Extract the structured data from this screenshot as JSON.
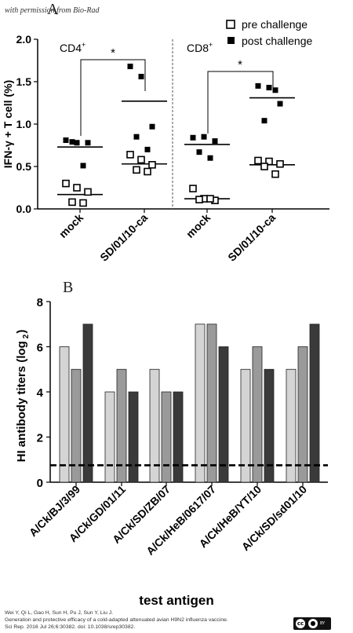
{
  "watermark": "with permission from Bio-Rad",
  "license_badge": {
    "text_by": "BY"
  },
  "citation": [
    "Wei Y, Qi L, Gao H, Sun H, Pu J, Sun Y, Liu J.",
    "Generation and protective efficacy of a cold-adapted attenuated avian H9N2 influenza vaccine.",
    "Sci Rep. 2016 Jul 26;6:30382. doi: 10.1038/srep30382."
  ],
  "chart_data": [
    {
      "panel": "A",
      "type": "scatter",
      "ylabel": "IFN-γ + T cell (%)",
      "ylim": [
        0,
        2.0
      ],
      "yticks": [
        "0.0",
        "0.5",
        "1.0",
        "1.5",
        "2.0"
      ],
      "groups": [
        {
          "name": "CD4",
          "superscript": "+",
          "categories": [
            "mock",
            "SD/01/10-ca"
          ]
        },
        {
          "name": "CD8",
          "superscript": "+",
          "categories": [
            "mock",
            "SD/01/10-ca"
          ]
        }
      ],
      "legend": [
        {
          "label": "pre challenge",
          "marker": "open-square"
        },
        {
          "label": "post challenge",
          "marker": "filled-square"
        }
      ],
      "series": [
        {
          "name": "pre challenge",
          "group": "CD4",
          "category": "mock",
          "values": [
            0.3,
            0.25,
            0.2,
            0.08,
            0.07
          ]
        },
        {
          "name": "post challenge",
          "group": "CD4",
          "category": "mock",
          "values": [
            0.81,
            0.78,
            0.78,
            0.79,
            0.51
          ]
        },
        {
          "name": "pre challenge",
          "group": "CD4",
          "category": "SD/01/10-ca",
          "values": [
            0.64,
            0.58,
            0.52,
            0.46,
            0.44
          ]
        },
        {
          "name": "post challenge",
          "group": "CD4",
          "category": "SD/01/10-ca",
          "values": [
            1.68,
            1.56,
            0.97,
            0.85,
            0.7
          ]
        },
        {
          "name": "pre challenge",
          "group": "CD8",
          "category": "mock",
          "values": [
            0.24,
            0.12,
            0.1,
            0.11,
            0.12
          ]
        },
        {
          "name": "post challenge",
          "group": "CD8",
          "category": "mock",
          "values": [
            0.84,
            0.85,
            0.8,
            0.67,
            0.6
          ]
        },
        {
          "name": "pre challenge",
          "group": "CD8",
          "category": "SD/01/10-ca",
          "values": [
            0.57,
            0.56,
            0.53,
            0.5,
            0.41
          ]
        },
        {
          "name": "post challenge",
          "group": "CD8",
          "category": "SD/01/10-ca",
          "values": [
            1.45,
            1.43,
            1.24,
            1.04,
            1.4
          ]
        }
      ],
      "medians": [
        {
          "group": "CD4",
          "category": "mock",
          "pre": 0.17,
          "post": 0.73
        },
        {
          "group": "CD4",
          "category": "SD/01/10-ca",
          "pre": 0.53,
          "post": 1.27
        },
        {
          "group": "CD8",
          "category": "mock",
          "pre": 0.12,
          "post": 0.76
        },
        {
          "group": "CD8",
          "category": "SD/01/10-ca",
          "pre": 0.52,
          "post": 1.31
        }
      ],
      "significance": [
        {
          "group": "CD4",
          "label": "*"
        },
        {
          "group": "CD8",
          "label": "*"
        }
      ]
    },
    {
      "panel": "B",
      "type": "bar",
      "ylabel": "HI antibody titers (log",
      "ylabel_sub": "2",
      "ylabel_end": ")",
      "xlabel": "test antigen",
      "ylim": [
        0,
        8
      ],
      "yticks": [
        "0",
        "2",
        "4",
        "6",
        "8"
      ],
      "categories": [
        "A/Ck/BJ/3/99",
        "A/Ck/GD/01/11",
        "A/Ck/SD/ZB/07",
        "A/Ck/HeB/0617/07",
        "A/Ck/HeB/YT/10",
        "A/Ck/SD/sd01/10"
      ],
      "series": [
        {
          "color": "#d4d4d4",
          "values": [
            6,
            4,
            5,
            7,
            5,
            5
          ]
        },
        {
          "color": "#9a9a9a",
          "values": [
            5,
            5,
            4,
            7,
            6,
            6
          ]
        },
        {
          "color": "#3a3a3a",
          "values": [
            7,
            4,
            4,
            6,
            5,
            7
          ]
        }
      ],
      "reference_line": {
        "value": 0.75,
        "style": "dashed"
      }
    }
  ]
}
